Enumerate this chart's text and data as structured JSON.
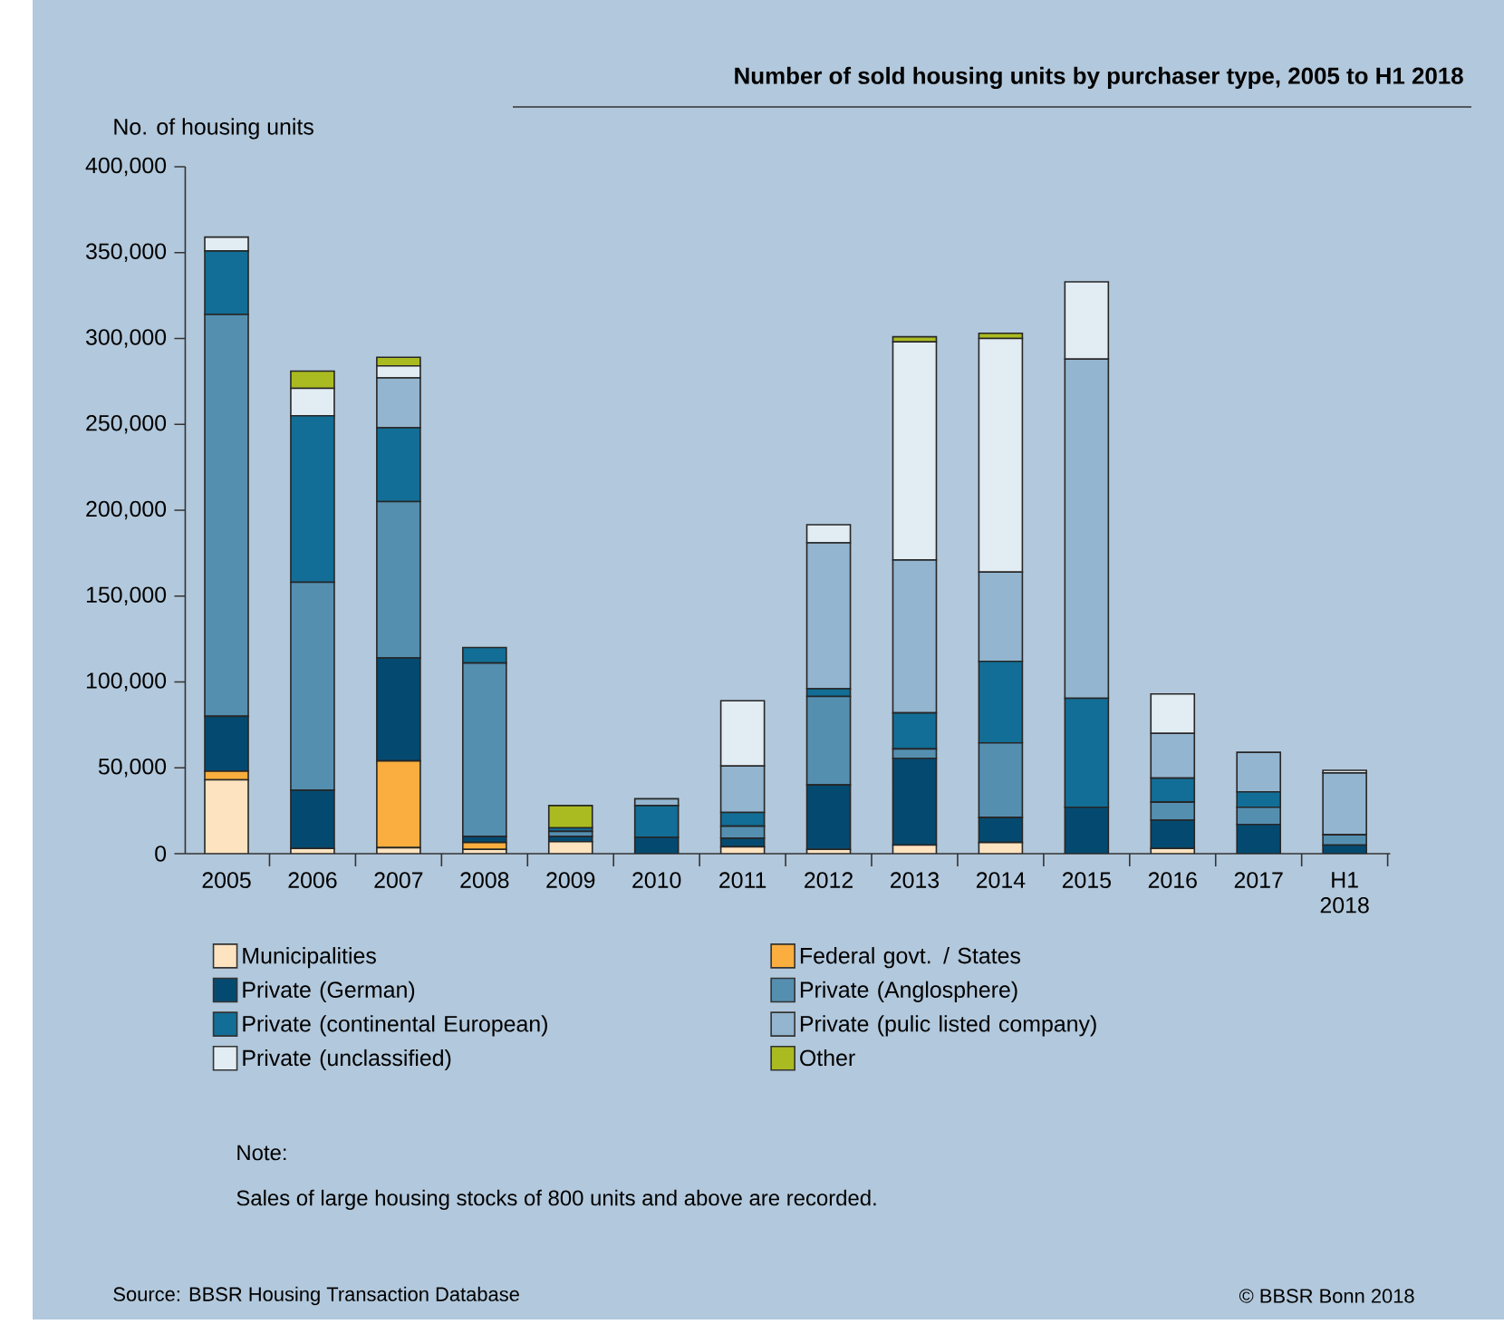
{
  "chart_data": {
    "type": "bar",
    "stacked": true,
    "title": "Number of sold housing units by purchaser type, 2005 to H1 2018",
    "ylabel": "No. of housing units",
    "categories": [
      "2005",
      "2006",
      "2007",
      "2008",
      "2009",
      "2010",
      "2011",
      "2012",
      "2013",
      "2014",
      "2015",
      "2016",
      "2017",
      "H1 2018"
    ],
    "ylim": [
      0,
      400000
    ],
    "yticks": [
      0,
      {
        "value": 50000,
        "label": "50,000"
      },
      {
        "value": 100000,
        "label": "100,000"
      },
      {
        "value": 150000,
        "label": "150,000"
      },
      {
        "value": 200000,
        "label": "200,000"
      },
      {
        "value": 250000,
        "label": "250,000"
      },
      {
        "value": 300000,
        "label": "300,000"
      },
      {
        "value": 350000,
        "label": "350,000"
      },
      {
        "value": 400000,
        "label": "400,000"
      }
    ],
    "legend": "bottom",
    "series": [
      {
        "name": "Municipalities",
        "color": "#fde3c0",
        "values": [
          43000,
          3000,
          3500,
          2500,
          7000,
          0,
          4000,
          2500,
          5000,
          6500,
          0,
          3000,
          0,
          0
        ]
      },
      {
        "name": "Federal govt. / States",
        "color": "#f9ae3f",
        "values": [
          5000,
          0,
          50500,
          4000,
          0,
          0,
          0,
          0,
          0,
          0,
          0,
          0,
          0,
          0
        ]
      },
      {
        "name": "Private (German)",
        "color": "#044a70",
        "values": [
          32000,
          34000,
          60000,
          3500,
          3000,
          9500,
          5000,
          37500,
          50500,
          14500,
          27000,
          16500,
          17000,
          5000
        ]
      },
      {
        "name": "Private (Anglosphere)",
        "color": "#558fb0",
        "values": [
          234000,
          121000,
          91000,
          101000,
          3000,
          0,
          7000,
          51500,
          5500,
          43500,
          0,
          10500,
          10000,
          6000
        ]
      },
      {
        "name": "Private (continental European)",
        "color": "#126e96",
        "values": [
          37000,
          97000,
          43000,
          9000,
          2000,
          18500,
          8000,
          4500,
          21000,
          47500,
          63500,
          14000,
          9000,
          0
        ]
      },
      {
        "name": "Private (pulic listed company)",
        "color": "#93b5cf",
        "values": [
          0,
          0,
          29000,
          0,
          0,
          4000,
          27000,
          85000,
          89000,
          52000,
          197500,
          26000,
          23000,
          36000
        ]
      },
      {
        "name": "Private (unclassified)",
        "color": "#e2ecf3",
        "values": [
          8000,
          16000,
          7000,
          0,
          0,
          0,
          38000,
          10500,
          127000,
          136000,
          45000,
          23000,
          0,
          1500
        ]
      },
      {
        "name": "Other",
        "color": "#aabb22",
        "values": [
          0,
          10000,
          5000,
          0,
          13000,
          0,
          0,
          0,
          3000,
          3000,
          0,
          0,
          0,
          0
        ]
      }
    ],
    "annotations": [
      "Note:",
      "Sales of large housing stocks of 800 units and above are recorded.",
      "Source: BBSR Housing Transaction Database",
      "© BBSR Bonn 2018"
    ]
  }
}
